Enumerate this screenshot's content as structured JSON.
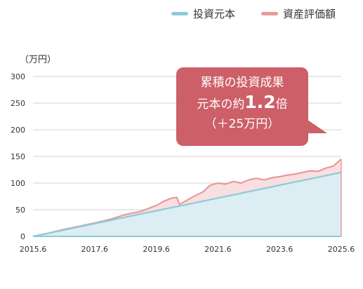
{
  "legend": {
    "principal": "投資元本",
    "valuation": "資産評価額"
  },
  "unit_label": "（万円）",
  "callout": {
    "line1": "累積の投資成果",
    "line2_pre": "元本の約",
    "line2_num": "1.2",
    "line2_post": "倍",
    "line3": "（＋25万円）"
  },
  "colors": {
    "principal_line": "#8ccbd9",
    "principal_fill": "#dcedf3",
    "valuation_line": "#e69a9c",
    "valuation_fill": "#f9dfe0",
    "callout": "#cd5f68"
  },
  "chart_data": {
    "type": "area",
    "x_tick_labels": [
      "2015.6",
      "2017.6",
      "2019.6",
      "2021.6",
      "2023.6",
      "2025.6"
    ],
    "y_tick_labels": [
      "0",
      "50",
      "100",
      "150",
      "200",
      "250",
      "300"
    ],
    "ylim": [
      0,
      300
    ],
    "xlim": [
      "2015.6",
      "2025.6"
    ],
    "grid": true,
    "legend_position": "top-right",
    "series": [
      {
        "name": "投資元本",
        "x": [
          "2015.6",
          "2016.6",
          "2017.6",
          "2018.6",
          "2019.6",
          "2020.6",
          "2021.6",
          "2022.6",
          "2023.6",
          "2024.6",
          "2025.6"
        ],
        "values": [
          0,
          12,
          24,
          36,
          48,
          60,
          72,
          84,
          96,
          108,
          120
        ]
      },
      {
        "name": "資産評価額",
        "x": [
          "2015.6",
          "2016.0",
          "2016.6",
          "2017.0",
          "2017.6",
          "2018.0",
          "2018.6",
          "2019.0",
          "2019.6",
          "2019.9",
          "2020.0",
          "2020.2",
          "2020.3",
          "2020.6",
          "2020.9",
          "2021.0",
          "2021.3",
          "2021.6",
          "2021.9",
          "2022.0",
          "2022.3",
          "2022.6",
          "2022.9",
          "2023.0",
          "2023.3",
          "2023.6",
          "2023.9",
          "2024.0",
          "2024.3",
          "2024.6",
          "2024.9",
          "2025.0",
          "2025.3",
          "2025.6"
        ],
        "values": [
          0,
          6,
          13,
          19,
          25,
          32,
          41,
          47,
          58,
          66,
          72,
          73,
          60,
          68,
          76,
          83,
          96,
          100,
          98,
          103,
          100,
          106,
          109,
          106,
          110,
          112,
          115,
          117,
          120,
          123,
          122,
          128,
          132,
          145
        ]
      }
    ]
  }
}
